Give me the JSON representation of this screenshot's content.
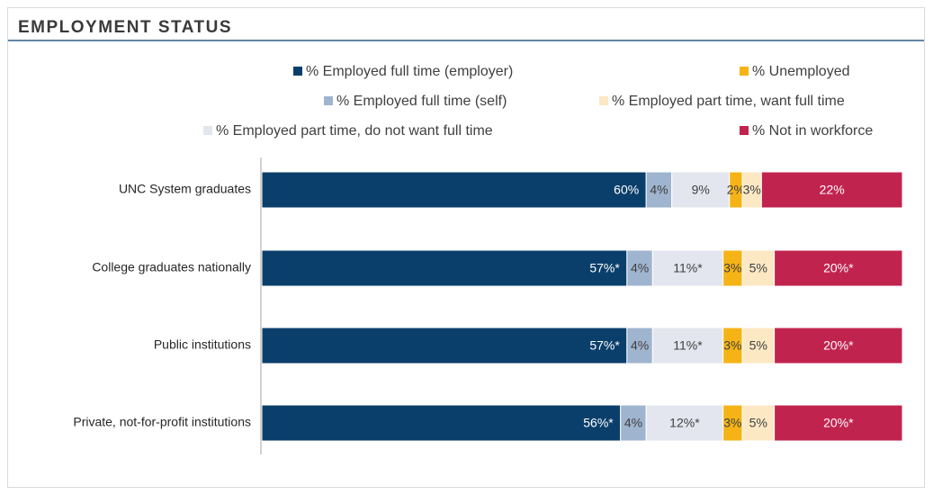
{
  "chart_data": {
    "type": "stacked-bar-horizontal",
    "title": "EMPLOYMENT STATUS",
    "categories": [
      "UNC System graduates",
      "College graduates nationally",
      "Public institutions",
      "Private, not-for-profit institutions"
    ],
    "series": [
      {
        "name": "% Employed full time (employer)",
        "color": "#0b3f6b",
        "values": [
          60,
          57,
          57,
          56
        ],
        "value_labels": [
          "60%",
          "57%*",
          "57%*",
          "56%*"
        ]
      },
      {
        "name": "% Employed full time (self)",
        "color": "#9fb4cf",
        "values": [
          4,
          4,
          4,
          4
        ],
        "value_labels": [
          "4%",
          "4%",
          "4%",
          "4%"
        ]
      },
      {
        "name": "% Employed part time, do not want full time",
        "color": "#e3e6ee",
        "values": [
          9,
          11,
          11,
          12
        ],
        "value_labels": [
          "9%",
          "11%*",
          "11%*",
          "12%*"
        ]
      },
      {
        "name": "% Unemployed",
        "color": "#f5b316",
        "values": [
          2,
          3,
          3,
          3
        ],
        "value_labels": [
          "2%",
          "3%",
          "3%",
          "3%"
        ]
      },
      {
        "name": "% Employed part time, want full time",
        "color": "#fde8c4",
        "values": [
          3,
          5,
          5,
          5
        ],
        "value_labels": [
          "3%",
          "5%",
          "5%",
          "5%"
        ]
      },
      {
        "name": "% Not in workforce",
        "color": "#c1234f",
        "values": [
          22,
          20,
          20,
          20
        ],
        "value_labels": [
          "22%",
          "20%*",
          "20%*",
          "20%*"
        ]
      }
    ]
  }
}
